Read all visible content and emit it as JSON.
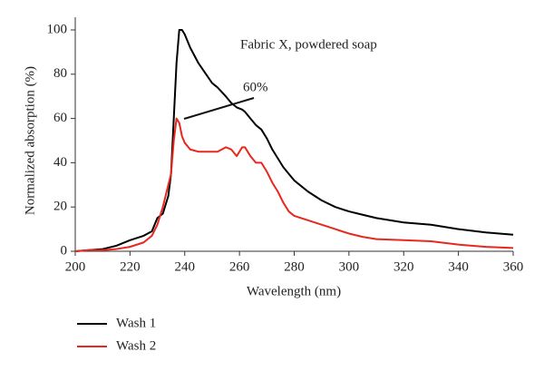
{
  "chart_data": {
    "type": "line",
    "annotations": [
      "Fabric X, powdered soap",
      "60%"
    ],
    "xlabel": "Wavelength (nm)",
    "ylabel": "Normalized absorption (%)",
    "x": [
      200,
      205,
      210,
      215,
      220,
      225,
      228,
      230,
      232,
      234,
      235,
      236,
      237,
      238,
      239,
      240,
      242,
      245,
      250,
      252,
      255,
      257,
      259,
      261,
      262,
      264,
      266,
      268,
      270,
      272,
      274,
      276,
      278,
      280,
      285,
      290,
      295,
      300,
      305,
      310,
      320,
      330,
      340,
      350,
      360
    ],
    "series": [
      {
        "name": "Wash 1",
        "color": "#000000",
        "values": [
          0,
          0.5,
          1,
          2.5,
          5,
          7,
          9,
          15,
          17,
          25,
          35,
          60,
          85,
          100,
          100,
          98,
          92,
          85,
          76,
          74,
          70,
          67,
          65,
          64,
          63,
          60,
          57,
          55,
          51,
          46,
          42,
          38,
          35,
          32,
          27,
          23,
          20,
          18,
          16.5,
          15,
          13,
          12,
          10,
          8.5,
          7.5
        ]
      },
      {
        "name": "Wash 2",
        "color": "#e8281e",
        "values": [
          0,
          0.5,
          0.5,
          1,
          2,
          4,
          7,
          12,
          20,
          30,
          35,
          50,
          60,
          58,
          52,
          49,
          46,
          45,
          45,
          45,
          47,
          46,
          43,
          47,
          47,
          43,
          40,
          40,
          36,
          31,
          27,
          22,
          18,
          16,
          14,
          12,
          10,
          8,
          6.5,
          5.5,
          5,
          4.5,
          3,
          2,
          1.5
        ]
      }
    ],
    "xlim": [
      200,
      360
    ],
    "xticks": [
      200,
      220,
      240,
      260,
      280,
      300,
      320,
      340,
      360
    ],
    "ylim": [
      0,
      100
    ],
    "yticks": [
      0,
      20,
      40,
      60,
      80,
      100
    ],
    "grid": false,
    "legend": "bottom-left"
  }
}
